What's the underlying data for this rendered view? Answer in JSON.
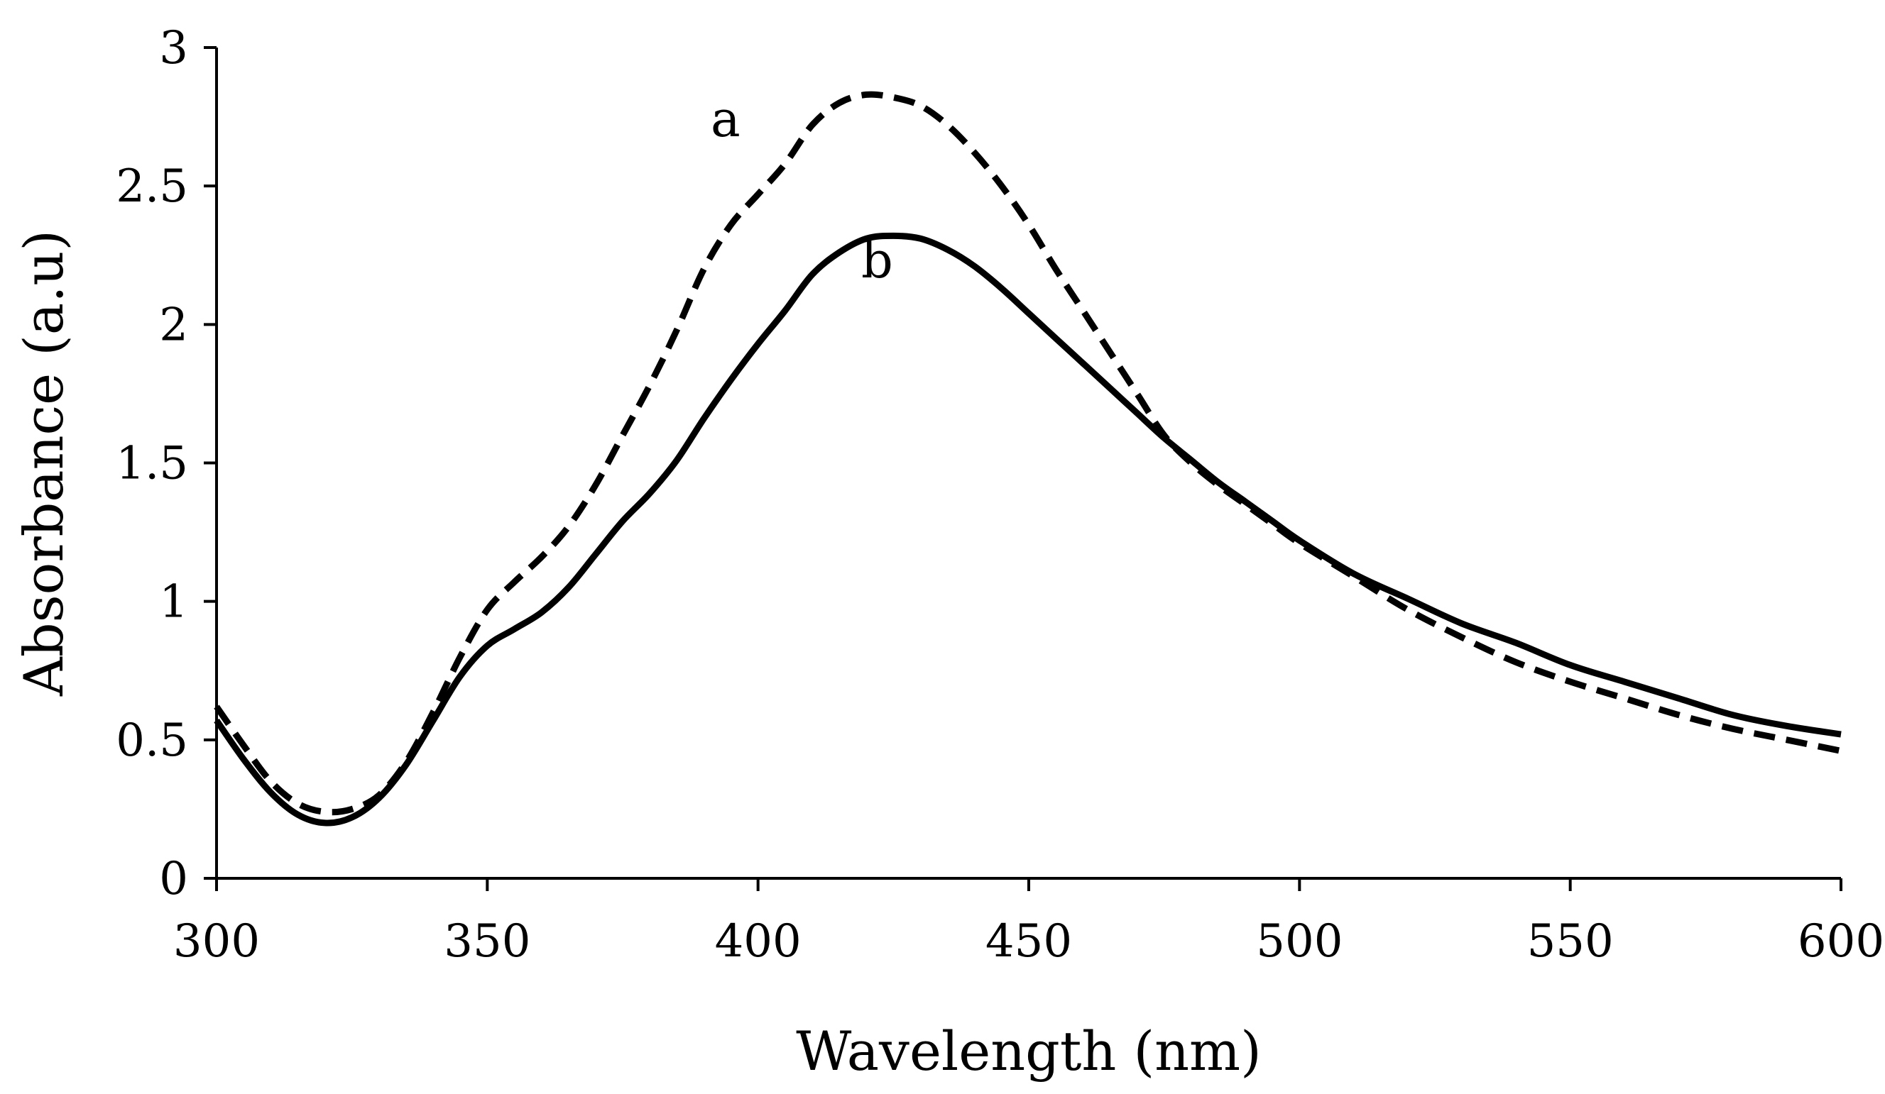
{
  "chart_data": {
    "type": "line",
    "title": "",
    "xlabel": "Wavelength (nm)",
    "ylabel": "Absorbance (a.u)",
    "xlim": [
      300,
      600
    ],
    "ylim": [
      0,
      3
    ],
    "xticks": [
      300,
      350,
      400,
      450,
      500,
      550,
      600
    ],
    "yticks": [
      0,
      0.5,
      1,
      1.5,
      2,
      2.5,
      3
    ],
    "xtick_labels": [
      "300",
      "350",
      "400",
      "450",
      "500",
      "550",
      "600"
    ],
    "ytick_labels": [
      "0",
      "0.5",
      "1",
      "1.5",
      "2",
      "2.5",
      "3"
    ],
    "grid": false,
    "series": [
      {
        "name": "a",
        "style": "dashed",
        "color": "#000000",
        "label_at": [
          394,
          2.68
        ],
        "x": [
          300,
          305,
          310,
          315,
          320,
          325,
          330,
          335,
          340,
          345,
          350,
          355,
          360,
          365,
          370,
          375,
          380,
          385,
          390,
          395,
          400,
          405,
          410,
          415,
          420,
          425,
          430,
          435,
          440,
          445,
          450,
          455,
          460,
          465,
          470,
          475,
          480,
          485,
          490,
          495,
          500,
          510,
          520,
          530,
          540,
          550,
          560,
          570,
          580,
          590,
          600
        ],
        "y": [
          0.62,
          0.48,
          0.35,
          0.27,
          0.24,
          0.25,
          0.3,
          0.42,
          0.6,
          0.8,
          0.97,
          1.07,
          1.16,
          1.27,
          1.42,
          1.6,
          1.78,
          1.98,
          2.2,
          2.36,
          2.47,
          2.58,
          2.72,
          2.8,
          2.83,
          2.82,
          2.79,
          2.72,
          2.62,
          2.5,
          2.36,
          2.2,
          2.05,
          1.9,
          1.75,
          1.6,
          1.5,
          1.42,
          1.35,
          1.28,
          1.21,
          1.09,
          0.97,
          0.87,
          0.78,
          0.71,
          0.65,
          0.59,
          0.54,
          0.5,
          0.46
        ]
      },
      {
        "name": "b",
        "style": "solid",
        "color": "#000000",
        "label_at": [
          422,
          2.17
        ],
        "x": [
          300,
          305,
          310,
          315,
          320,
          325,
          330,
          335,
          340,
          345,
          350,
          355,
          360,
          365,
          370,
          375,
          380,
          385,
          390,
          395,
          400,
          405,
          410,
          415,
          420,
          425,
          430,
          435,
          440,
          445,
          450,
          455,
          460,
          465,
          470,
          475,
          480,
          485,
          490,
          495,
          500,
          510,
          520,
          530,
          540,
          550,
          560,
          570,
          580,
          590,
          600
        ],
        "y": [
          0.57,
          0.43,
          0.31,
          0.23,
          0.2,
          0.22,
          0.29,
          0.41,
          0.57,
          0.73,
          0.84,
          0.9,
          0.96,
          1.05,
          1.17,
          1.29,
          1.39,
          1.51,
          1.66,
          1.8,
          1.93,
          2.05,
          2.18,
          2.26,
          2.31,
          2.32,
          2.31,
          2.27,
          2.21,
          2.13,
          2.04,
          1.95,
          1.86,
          1.77,
          1.68,
          1.59,
          1.51,
          1.43,
          1.36,
          1.29,
          1.22,
          1.1,
          1.01,
          0.92,
          0.85,
          0.77,
          0.71,
          0.65,
          0.59,
          0.55,
          0.52
        ]
      }
    ]
  }
}
